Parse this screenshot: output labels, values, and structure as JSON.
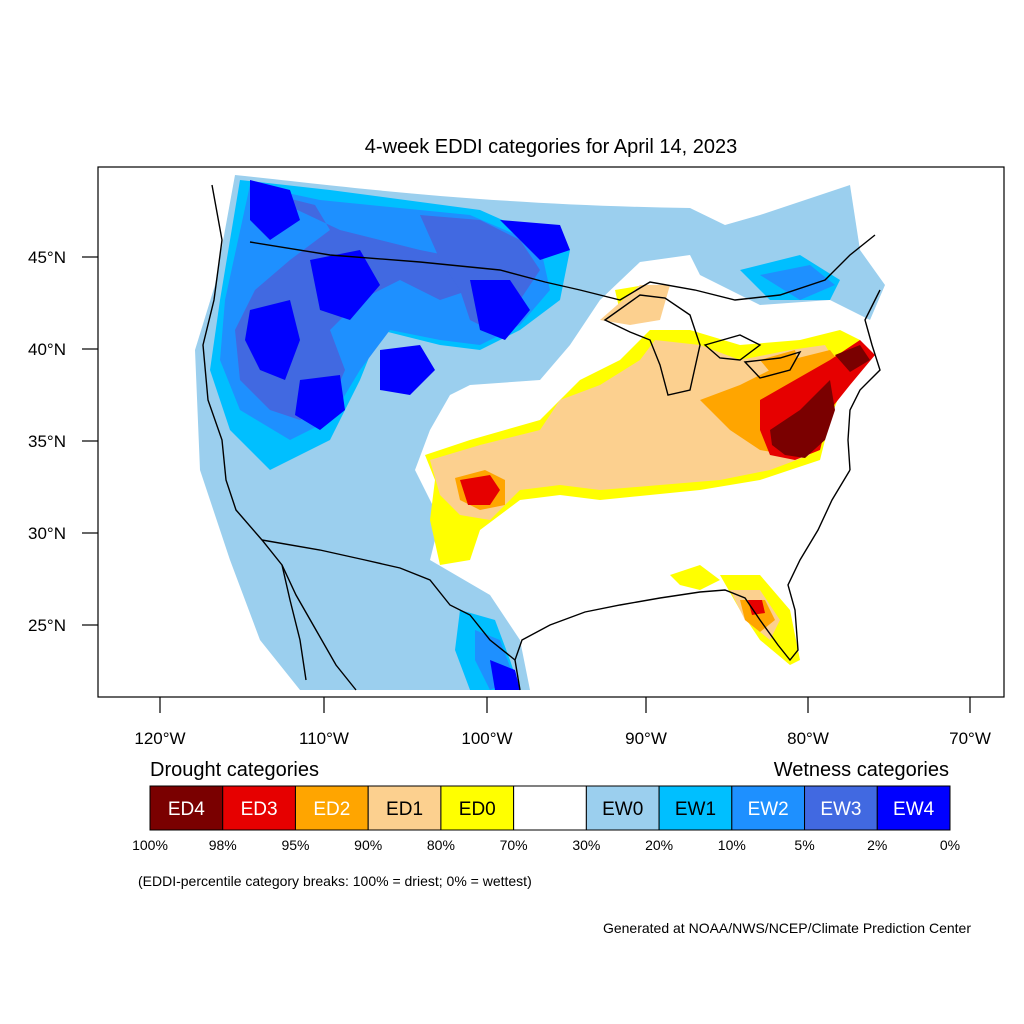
{
  "title": "4-week EDDI categories for April 14, 2023",
  "lat_labels": [
    "45°N",
    "40°N",
    "35°N",
    "30°N",
    "25°N"
  ],
  "lon_labels": [
    "120°W",
    "110°W",
    "100°W",
    "90°W",
    "80°W",
    "70°W"
  ],
  "legend": {
    "drought_heading": "Drought categories",
    "wetness_heading": "Wetness categories",
    "categories": [
      {
        "label": "ED4",
        "color": "#7a0000",
        "text_color": "#ffffff"
      },
      {
        "label": "ED3",
        "color": "#e60000",
        "text_color": "#ffffff"
      },
      {
        "label": "ED2",
        "color": "#ffa500",
        "text_color": "#ffffff"
      },
      {
        "label": "ED1",
        "color": "#fcd08f",
        "text_color": "#000000"
      },
      {
        "label": "ED0",
        "color": "#ffff00",
        "text_color": "#000000"
      },
      {
        "label": "",
        "color": "#ffffff",
        "text_color": "#000000"
      },
      {
        "label": "EW0",
        "color": "#9bcfee",
        "text_color": "#000000"
      },
      {
        "label": "EW1",
        "color": "#00bfff",
        "text_color": "#000000"
      },
      {
        "label": "EW2",
        "color": "#1e90ff",
        "text_color": "#ffffff"
      },
      {
        "label": "EW3",
        "color": "#4169e1",
        "text_color": "#ffffff"
      },
      {
        "label": "EW4",
        "color": "#0000ff",
        "text_color": "#ffffff"
      }
    ],
    "percent_labels": [
      "100%",
      "98%",
      "95%",
      "90%",
      "80%",
      "70%",
      "30%",
      "20%",
      "10%",
      "5%",
      "2%",
      "0%"
    ],
    "note": "(EDDI-percentile category breaks: 100% = driest; 0% = wettest)"
  },
  "credit": "Generated at NOAA/NWS/NCEP/Climate Prediction Center"
}
